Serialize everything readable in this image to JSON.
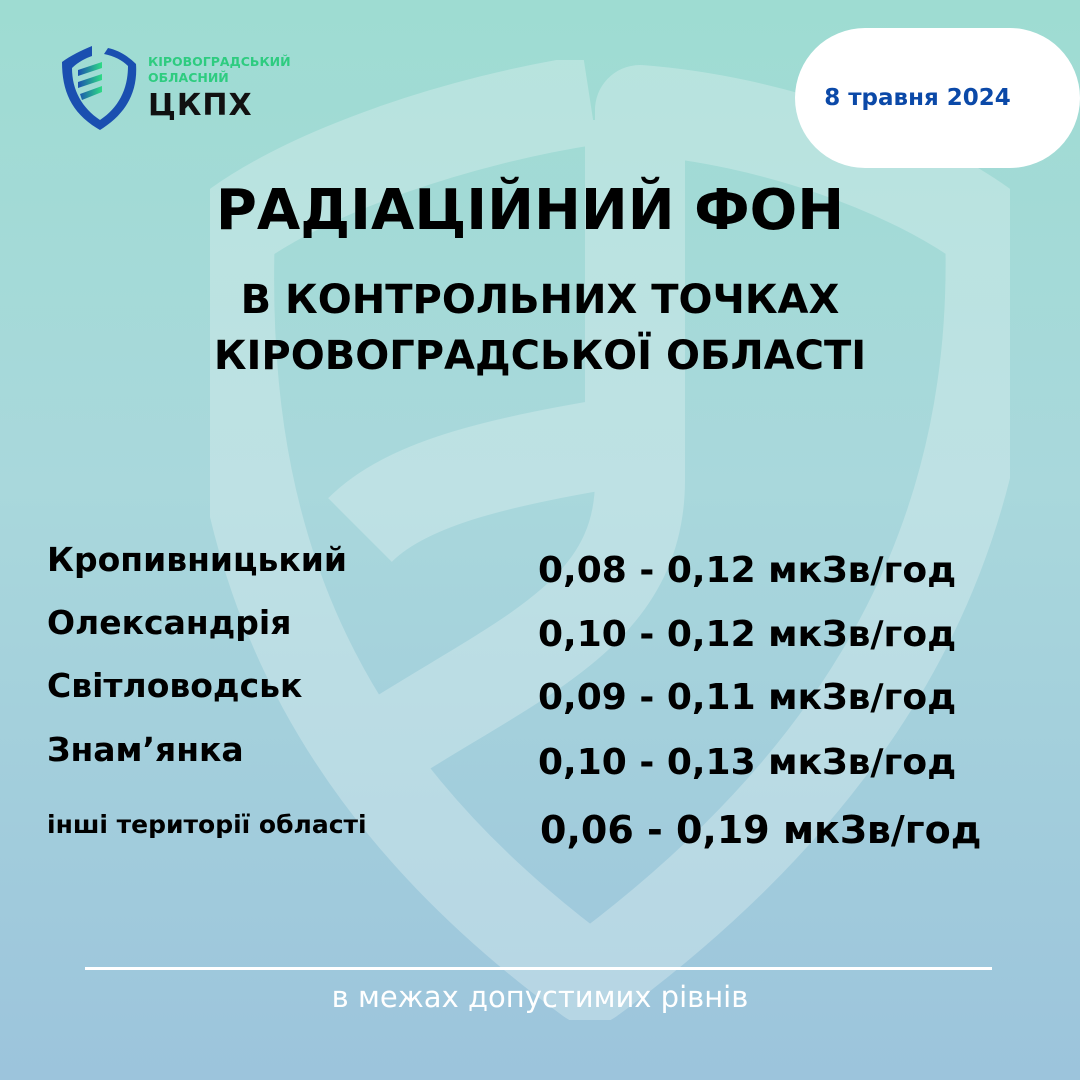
{
  "logo": {
    "line1": "КІРОВОГРАДСЬКИЙ",
    "line2": "ОБЛАСНИЙ",
    "name": "ЦКПХ"
  },
  "date": "8 травня 2024",
  "title": "РАДІАЦІЙНИЙ ФОН",
  "subtitle1": "В КОНТРОЛЬНИХ ТОЧКАХ",
  "subtitle2": "КІРОВОГРАДСЬКОЇ ОБЛАСТІ",
  "rows": [
    {
      "place": "Кропивницький",
      "value": "0,08 - 0,12 мкЗв/год"
    },
    {
      "place": "Олександрія",
      "value": "0,10 - 0,12 мкЗв/год"
    },
    {
      "place": "Світловодськ",
      "value": "0,09 - 0,11 мкЗв/год"
    },
    {
      "place": "Знам’янка",
      "value": "0,10 - 0,13 мкЗв/год"
    },
    {
      "place": "інші території області",
      "value": "0,06 - 0,19 мкЗв/год"
    }
  ],
  "footer": "в межах допустимих рівнів",
  "colors": {
    "accent_blue": "#0b49a8",
    "accent_green": "#2ecc80"
  }
}
